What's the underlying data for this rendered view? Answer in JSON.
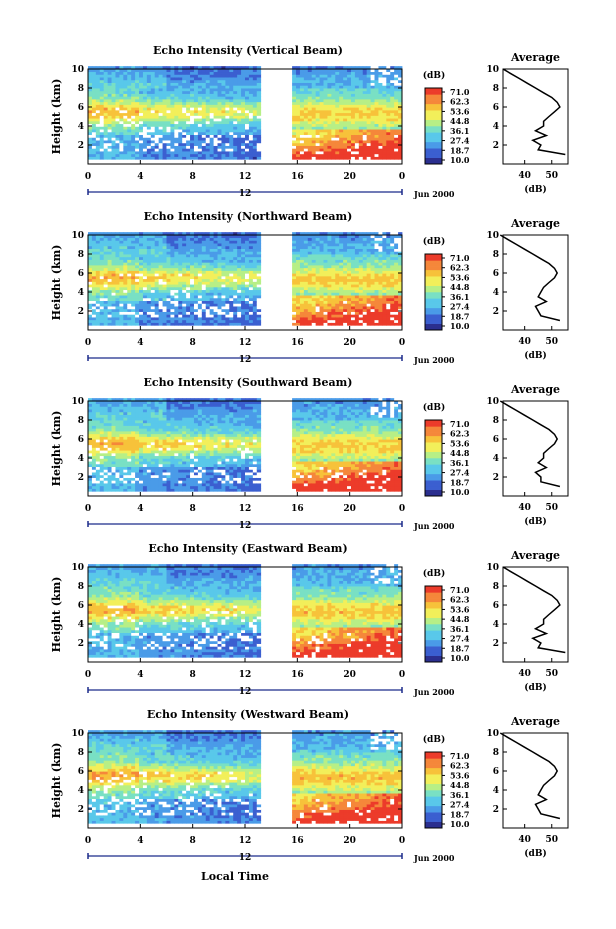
{
  "chart_data": [
    {
      "type": "heatmap",
      "title": "Echo Intensity (Vertical Beam)",
      "ylabel": "Height (km)",
      "ylim": [
        0,
        10
      ],
      "yticks": [
        2,
        4,
        6,
        8,
        10
      ],
      "xlim": [
        0,
        24
      ],
      "xticks": [
        "0",
        "4",
        "8",
        "12",
        "16",
        "20",
        "0"
      ],
      "x_date_label": "12",
      "month_label": "Jun 2000",
      "data_gap_hours": [
        13.3,
        15.5
      ],
      "colorbar": {
        "unit": "(dB)",
        "ticks": [
          "71.0",
          "62.3",
          "53.6",
          "44.8",
          "36.1",
          "27.4",
          "18.7",
          "10.0"
        ],
        "min": 10.0,
        "max": 71.0
      },
      "profile": {
        "title": "Average",
        "xlabel": "(dB)",
        "xlim": [
          32,
          56
        ],
        "xticks": [
          "40",
          "50"
        ],
        "height": [
          1,
          1.5,
          2,
          2.5,
          3,
          3.5,
          4,
          4.5,
          5,
          5.5,
          6,
          6.5,
          7,
          7.5,
          8,
          8.5,
          9,
          9.5,
          10
        ],
        "values": [
          55,
          45,
          46,
          43,
          48,
          44,
          47,
          47,
          49,
          51,
          53,
          52,
          50,
          47,
          44,
          41,
          38,
          35,
          32
        ]
      }
    },
    {
      "type": "heatmap",
      "title": "Echo Intensity (Northward Beam)",
      "ylabel": "Height (km)",
      "ylim": [
        0,
        10
      ],
      "yticks": [
        2,
        4,
        6,
        8,
        10
      ],
      "xlim": [
        0,
        24
      ],
      "xticks": [
        "0",
        "4",
        "8",
        "12",
        "16",
        "20",
        "0"
      ],
      "x_date_label": "12",
      "month_label": "Jun 2000",
      "data_gap_hours": [
        13.3,
        15.5
      ],
      "colorbar": {
        "unit": "(dB)",
        "ticks": [
          "71.0",
          "62.3",
          "53.6",
          "44.8",
          "36.1",
          "27.4",
          "18.7",
          "10.0"
        ],
        "min": 10.0,
        "max": 71.0
      },
      "profile": {
        "title": "Average",
        "xlabel": "(dB)",
        "xlim": [
          32,
          56
        ],
        "xticks": [
          "40",
          "50"
        ],
        "height": [
          1,
          1.5,
          2,
          2.5,
          3,
          3.5,
          4,
          4.5,
          5,
          5.5,
          6,
          6.5,
          7,
          7.5,
          8,
          8.5,
          9,
          9.5,
          10
        ],
        "values": [
          53,
          46,
          45,
          44,
          48,
          45,
          46,
          47,
          49,
          51,
          52,
          51,
          49,
          46,
          43,
          40,
          37,
          34,
          31
        ]
      }
    },
    {
      "type": "heatmap",
      "title": "Echo Intensity (Southward Beam)",
      "ylabel": "Height (km)",
      "ylim": [
        0,
        10
      ],
      "yticks": [
        2,
        4,
        6,
        8,
        10
      ],
      "xlim": [
        0,
        24
      ],
      "xticks": [
        "0",
        "4",
        "8",
        "12",
        "16",
        "20",
        "0"
      ],
      "x_date_label": "12",
      "month_label": "Jun 2000",
      "data_gap_hours": [
        13.3,
        15.5
      ],
      "colorbar": {
        "unit": "(dB)",
        "ticks": [
          "71.0",
          "62.3",
          "53.6",
          "44.8",
          "36.1",
          "27.4",
          "18.7",
          "10.0"
        ],
        "min": 10.0,
        "max": 71.0
      },
      "profile": {
        "title": "Average",
        "xlabel": "(dB)",
        "xlim": [
          32,
          56
        ],
        "xticks": [
          "40",
          "50"
        ],
        "height": [
          1,
          1.5,
          2,
          2.5,
          3,
          3.5,
          4,
          4.5,
          5,
          5.5,
          6,
          6.5,
          7,
          7.5,
          8,
          8.5,
          9,
          9.5,
          10
        ],
        "values": [
          53,
          46,
          46,
          44,
          48,
          45,
          47,
          47,
          49,
          51,
          52,
          51,
          49,
          46,
          43,
          40,
          37,
          34,
          31
        ]
      }
    },
    {
      "type": "heatmap",
      "title": "Echo Intensity (Eastward Beam)",
      "ylabel": "Height (km)",
      "ylim": [
        0,
        10
      ],
      "yticks": [
        2,
        4,
        6,
        8,
        10
      ],
      "xlim": [
        0,
        24
      ],
      "xticks": [
        "0",
        "4",
        "8",
        "12",
        "16",
        "20",
        "0"
      ],
      "x_date_label": "12",
      "month_label": "Jun 2000",
      "data_gap_hours": [
        13.3,
        15.5
      ],
      "colorbar": {
        "unit": "(dB)",
        "ticks": [
          "71.0",
          "62.3",
          "53.6",
          "44.8",
          "36.1",
          "27.4",
          "18.7",
          "10.0"
        ],
        "min": 10.0,
        "max": 71.0
      },
      "profile": {
        "title": "Average",
        "xlabel": "(dB)",
        "xlim": [
          32,
          56
        ],
        "xticks": [
          "40",
          "50"
        ],
        "height": [
          1,
          1.5,
          2,
          2.5,
          3,
          3.5,
          4,
          4.5,
          5,
          5.5,
          6,
          6.5,
          7,
          7.5,
          8,
          8.5,
          9,
          9.5,
          10
        ],
        "values": [
          55,
          45,
          46,
          43,
          48,
          44,
          47,
          47,
          49,
          51,
          53,
          52,
          50,
          47,
          44,
          41,
          38,
          35,
          32
        ]
      }
    },
    {
      "type": "heatmap",
      "title": "Echo Intensity (Westward Beam)",
      "ylabel": "Height (km)",
      "ylim": [
        0,
        10
      ],
      "yticks": [
        2,
        4,
        6,
        8,
        10
      ],
      "xlim": [
        0,
        24
      ],
      "xticks": [
        "0",
        "4",
        "8",
        "12",
        "16",
        "20",
        "0"
      ],
      "x_date_label": "12",
      "month_label": "Jun 2000",
      "xlabel": "Local Time",
      "data_gap_hours": [
        13.3,
        15.5
      ],
      "colorbar": {
        "unit": "(dB)",
        "ticks": [
          "71.0",
          "62.3",
          "53.6",
          "44.8",
          "36.1",
          "27.4",
          "18.7",
          "10.0"
        ],
        "min": 10.0,
        "max": 71.0
      },
      "profile": {
        "title": "Average",
        "xlabel": "(dB)",
        "xlim": [
          32,
          56
        ],
        "xticks": [
          "40",
          "50"
        ],
        "height": [
          1,
          1.5,
          2,
          2.5,
          3,
          3.5,
          4,
          4.5,
          5,
          5.5,
          6,
          6.5,
          7,
          7.5,
          8,
          8.5,
          9,
          9.5,
          10
        ],
        "values": [
          53,
          46,
          45,
          44,
          48,
          45,
          46,
          47,
          49,
          51,
          52,
          51,
          49,
          46,
          43,
          40,
          37,
          34,
          31
        ]
      }
    }
  ],
  "colors": {
    "scale": [
      "#2b2f8f",
      "#3b5fd0",
      "#4a9be8",
      "#59c8ea",
      "#79e0c4",
      "#b7ef86",
      "#f2ef5a",
      "#f7c23a",
      "#f5873a",
      "#ec3b2a"
    ],
    "missing": "#ffffff",
    "axis": "#000000",
    "time_axis": "#1a2a8a"
  }
}
